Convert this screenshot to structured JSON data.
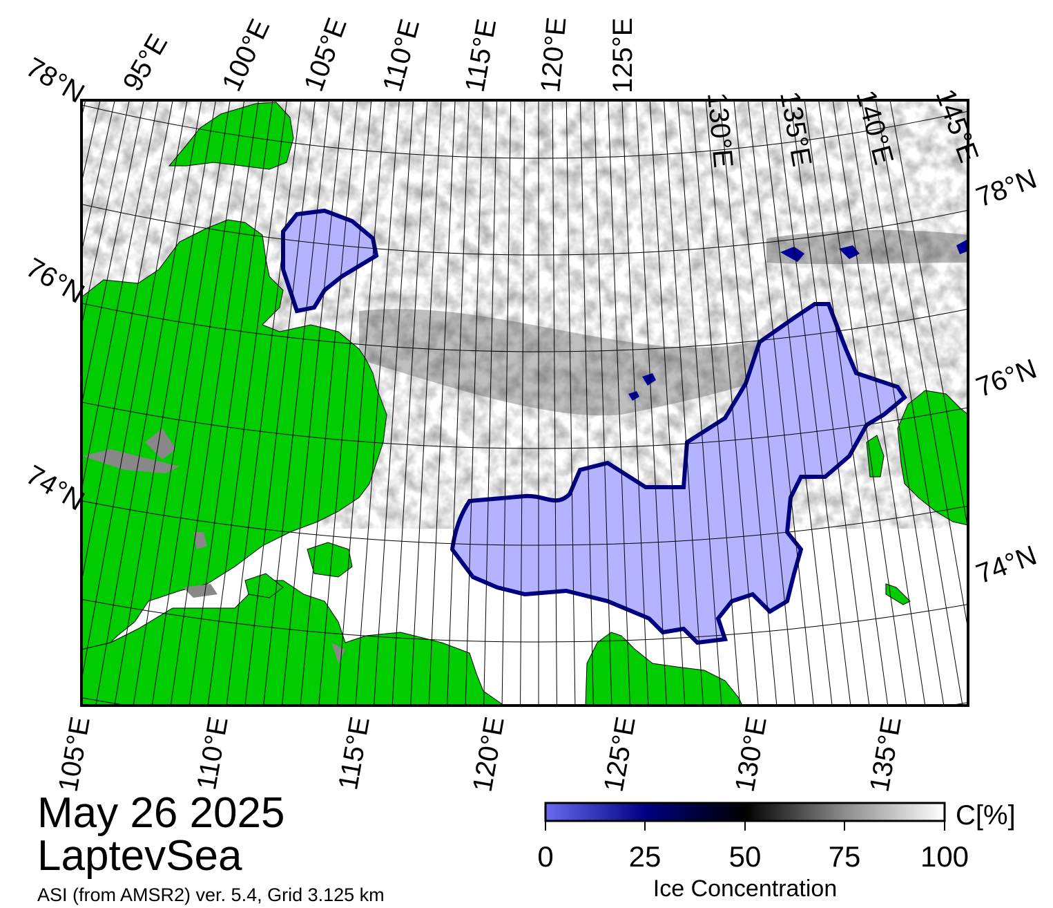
{
  "map": {
    "region": "LaptevSea",
    "date": "May 26 2025",
    "source": "ASI (from AMSR2) ver. 5.4,  Grid 3.125 km",
    "colors": {
      "land": "#00cc00",
      "land_ice": "#888888",
      "open_water_low_conc": "#b3b3ff",
      "ice_edge": "#000066",
      "ocean_full_ice": "#ffffff",
      "frame": "#000000"
    },
    "top_lon_labels": [
      "95°E",
      "100°E",
      "105°E",
      "110°E",
      "115°E",
      "120°E",
      "125°E",
      "130°E",
      "135°E",
      "140°E",
      "145°E"
    ],
    "bottom_lon_labels": [
      "105°E",
      "110°E",
      "115°E",
      "120°E",
      "125°E",
      "130°E",
      "135°E"
    ],
    "left_lat_labels": [
      "78°N",
      "76°N",
      "74°N"
    ],
    "right_lat_labels": [
      "78°N",
      "76°N",
      "74°N"
    ]
  },
  "colorbar": {
    "title": "Ice Concentration",
    "unit": "C[%]",
    "ticks": [
      "0",
      "25",
      "50",
      "75",
      "100"
    ],
    "stops": [
      {
        "value": 0,
        "color": "#6666ee"
      },
      {
        "value": 25,
        "color": "#000088"
      },
      {
        "value": 50,
        "color": "#000000"
      },
      {
        "value": 75,
        "color": "#999999"
      },
      {
        "value": 100,
        "color": "#ffffff"
      }
    ]
  }
}
